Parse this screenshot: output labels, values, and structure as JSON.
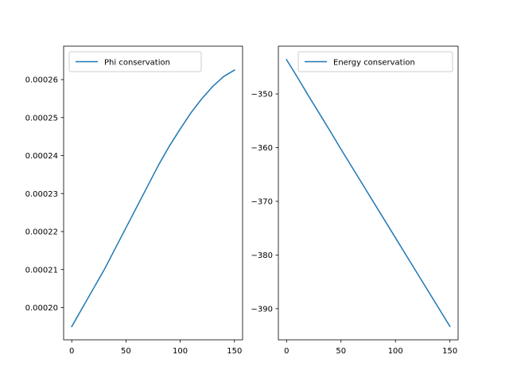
{
  "chart_data": [
    {
      "type": "line",
      "title": "",
      "xlabel": "",
      "ylabel": "",
      "xlim": [
        -7.5,
        157.5
      ],
      "ylim": [
        0.0001915,
        0.0002688
      ],
      "xticks": [
        0,
        50,
        100,
        150
      ],
      "xtick_labels": [
        "0",
        "50",
        "100",
        "150"
      ],
      "yticks": [
        0.0002,
        0.00021,
        0.00022,
        0.00023,
        0.00024,
        0.00025,
        0.00026
      ],
      "ytick_labels": [
        "0.00020",
        "0.00021",
        "0.00022",
        "0.00023",
        "0.00024",
        "0.00025",
        "0.00026"
      ],
      "grid": false,
      "legend_position": "upper-left",
      "series": [
        {
          "name": "Phi conservation",
          "color": "#1f77b4",
          "x": [
            0,
            10,
            20,
            30,
            40,
            50,
            60,
            70,
            80,
            90,
            100,
            110,
            120,
            130,
            140,
            150
          ],
          "y": [
            0.000195,
            0.0002,
            0.000205,
            0.00021,
            0.0002155,
            0.000221,
            0.0002265,
            0.000232,
            0.0002375,
            0.0002425,
            0.000247,
            0.0002513,
            0.000255,
            0.0002582,
            0.0002608,
            0.0002625
          ]
        }
      ]
    },
    {
      "type": "line",
      "title": "",
      "xlabel": "",
      "ylabel": "",
      "xlim": [
        -7.5,
        157.5
      ],
      "ylim": [
        -395.8,
        -341.1
      ],
      "xticks": [
        0,
        50,
        100,
        150
      ],
      "xtick_labels": [
        "0",
        "50",
        "100",
        "150"
      ],
      "yticks": [
        -390,
        -380,
        -370,
        -360,
        -350
      ],
      "ytick_labels": [
        "−390",
        "−380",
        "−370",
        "−360",
        "−350"
      ],
      "grid": false,
      "legend_position": "upper-right",
      "series": [
        {
          "name": "Energy conservation",
          "color": "#1f77b4",
          "x": [
            0,
            10,
            20,
            30,
            40,
            50,
            60,
            70,
            80,
            90,
            100,
            110,
            120,
            130,
            140,
            150
          ],
          "y": [
            -343.6,
            -346.9,
            -350.3,
            -353.6,
            -356.9,
            -360.3,
            -363.6,
            -366.9,
            -370.2,
            -373.5,
            -376.8,
            -380.1,
            -383.4,
            -386.7,
            -390.0,
            -393.3
          ]
        }
      ]
    }
  ]
}
